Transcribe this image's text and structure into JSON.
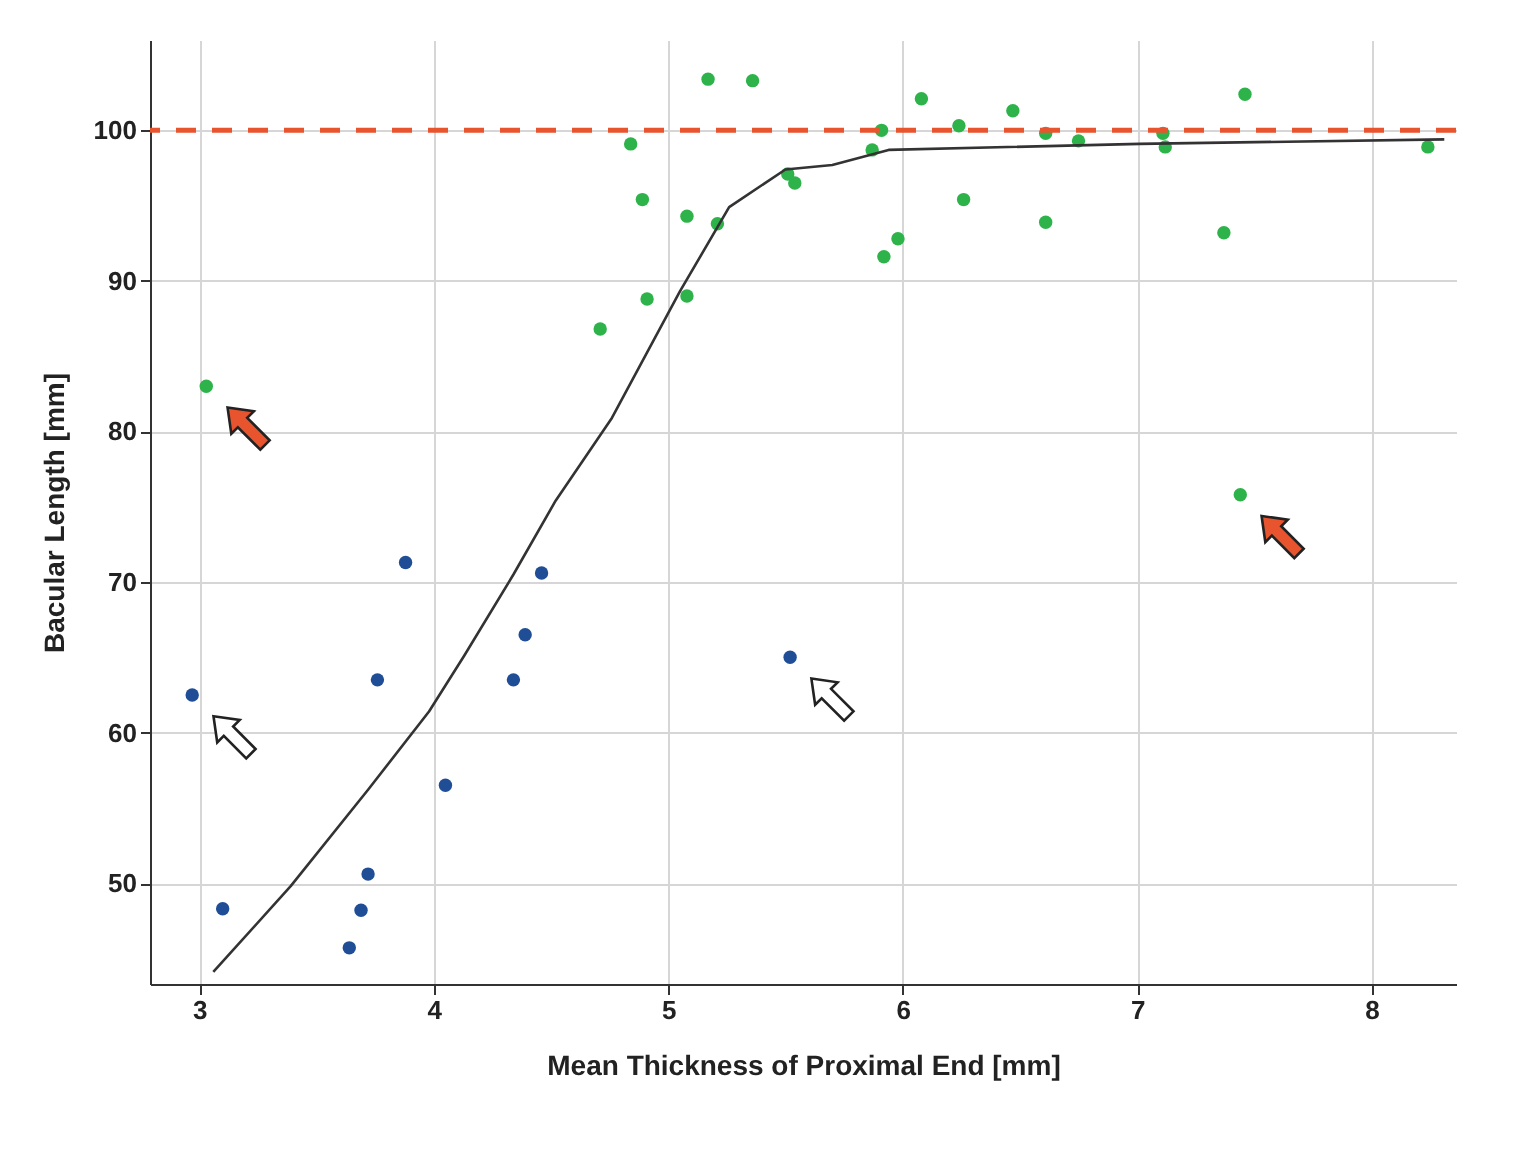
{
  "chart_data": {
    "type": "scatter",
    "xlabel": "Mean Thickness of Proximal End [mm]",
    "ylabel": "Bacular Length [mm]",
    "xlim": [
      2.79,
      8.36
    ],
    "ylim": [
      43.3,
      106
    ],
    "xticks": [
      3,
      4,
      5,
      6,
      7,
      8
    ],
    "yticks": [
      50,
      60,
      70,
      80,
      90,
      100
    ],
    "grid": true,
    "marker": "circle",
    "series": [
      {
        "color": "#1f4e96",
        "x": [
          2.97,
          3.1,
          3.88,
          3.76,
          4.46,
          4.39,
          4.34,
          4.05,
          3.72,
          3.69,
          3.64,
          5.52
        ],
        "values": [
          62.5,
          48.3,
          71.3,
          63.5,
          70.6,
          66.5,
          63.5,
          56.5,
          50.6,
          48.2,
          45.7,
          65.0
        ]
      },
      {
        "color": "#2db34a",
        "x": [
          3.03,
          4.84,
          4.89,
          5.08,
          5.21,
          4.71,
          4.91,
          5.08,
          5.17,
          5.36,
          5.51,
          5.54,
          5.91,
          5.87,
          6.08,
          6.24,
          6.47,
          6.61,
          6.75,
          6.26,
          6.61,
          5.92,
          5.98,
          7.11,
          7.12,
          7.46,
          7.37,
          8.24,
          7.44
        ],
        "values": [
          83.0,
          99.1,
          95.4,
          94.3,
          93.8,
          86.8,
          88.8,
          89.0,
          103.4,
          103.3,
          97.1,
          96.5,
          100.0,
          98.7,
          102.1,
          100.3,
          101.3,
          99.8,
          99.3,
          95.4,
          93.9,
          91.6,
          92.8,
          99.8,
          98.9,
          102.4,
          93.2,
          98.9,
          75.8
        ]
      },
      {
        "type": "line",
        "color": "#333333",
        "line_style": "solid",
        "marker": "none",
        "x": [
          3.06,
          3.39,
          3.72,
          3.98,
          4.13,
          4.34,
          4.52,
          4.76,
          5.05,
          5.26,
          5.5,
          5.7,
          5.94,
          7.01,
          8.31
        ],
        "values": [
          44.1,
          49.8,
          56.2,
          61.4,
          65.1,
          70.5,
          75.4,
          80.9,
          89.3,
          94.9,
          97.4,
          97.7,
          98.7,
          99.1,
          99.4
        ]
      }
    ],
    "ref_lines": [
      {
        "axis": "y",
        "value": 100,
        "color": "#e8542e",
        "line_style": "dashed"
      }
    ]
  }
}
